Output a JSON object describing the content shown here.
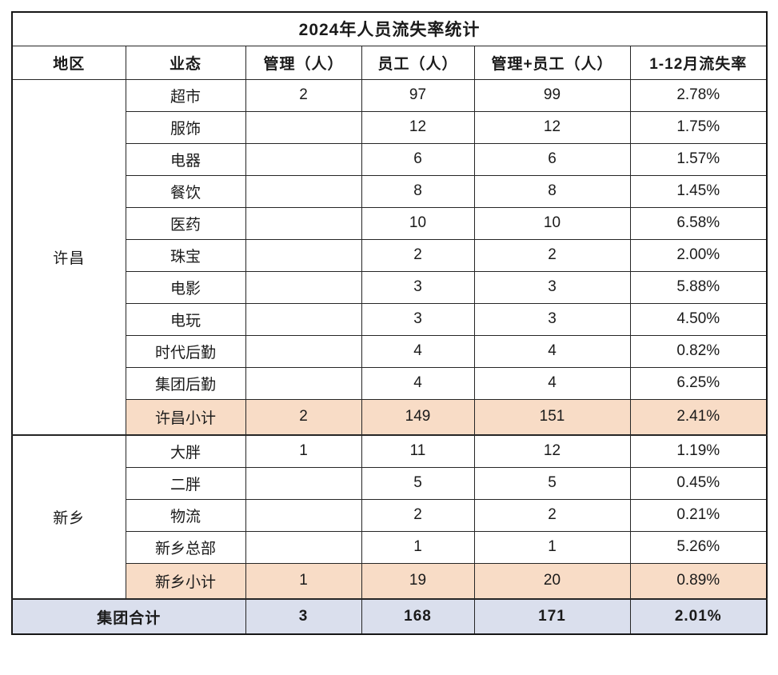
{
  "chart_data": {
    "type": "table",
    "title": "2024年人员流失率统计",
    "columns": [
      "地区",
      "业态",
      "管理（人）",
      "员工（人）",
      "管理+员工（人）",
      "1-12月流失率"
    ],
    "regions": [
      {
        "name": "许昌",
        "rows": [
          {
            "business": "超市",
            "mgmt": "2",
            "staff": "97",
            "total": "99",
            "rate": "2.78%"
          },
          {
            "business": "服饰",
            "mgmt": "",
            "staff": "12",
            "total": "12",
            "rate": "1.75%"
          },
          {
            "business": "电器",
            "mgmt": "",
            "staff": "6",
            "total": "6",
            "rate": "1.57%"
          },
          {
            "business": "餐饮",
            "mgmt": "",
            "staff": "8",
            "total": "8",
            "rate": "1.45%"
          },
          {
            "business": "医药",
            "mgmt": "",
            "staff": "10",
            "total": "10",
            "rate": "6.58%"
          },
          {
            "business": "珠宝",
            "mgmt": "",
            "staff": "2",
            "total": "2",
            "rate": "2.00%"
          },
          {
            "business": "电影",
            "mgmt": "",
            "staff": "3",
            "total": "3",
            "rate": "5.88%"
          },
          {
            "business": "电玩",
            "mgmt": "",
            "staff": "3",
            "total": "3",
            "rate": "4.50%"
          },
          {
            "business": "时代后勤",
            "mgmt": "",
            "staff": "4",
            "total": "4",
            "rate": "0.82%"
          },
          {
            "business": "集团后勤",
            "mgmt": "",
            "staff": "4",
            "total": "4",
            "rate": "6.25%"
          }
        ],
        "subtotal": {
          "label": "许昌小计",
          "mgmt": "2",
          "staff": "149",
          "total": "151",
          "rate": "2.41%"
        }
      },
      {
        "name": "新乡",
        "rows": [
          {
            "business": "大胖",
            "mgmt": "1",
            "staff": "11",
            "total": "12",
            "rate": "1.19%"
          },
          {
            "business": "二胖",
            "mgmt": "",
            "staff": "5",
            "total": "5",
            "rate": "0.45%"
          },
          {
            "business": "物流",
            "mgmt": "",
            "staff": "2",
            "total": "2",
            "rate": "0.21%"
          },
          {
            "business": "新乡总部",
            "mgmt": "",
            "staff": "1",
            "total": "1",
            "rate": "5.26%"
          }
        ],
        "subtotal": {
          "label": "新乡小计",
          "mgmt": "1",
          "staff": "19",
          "total": "20",
          "rate": "0.89%"
        }
      }
    ],
    "grand_total": {
      "label": "集团合计",
      "mgmt": "3",
      "staff": "168",
      "total": "171",
      "rate": "2.01%"
    }
  },
  "colors": {
    "subtotal_bg": "#f8dcc6",
    "grand_total_bg": "#dadfed",
    "border": "#262626",
    "text": "#1a1a1a"
  }
}
